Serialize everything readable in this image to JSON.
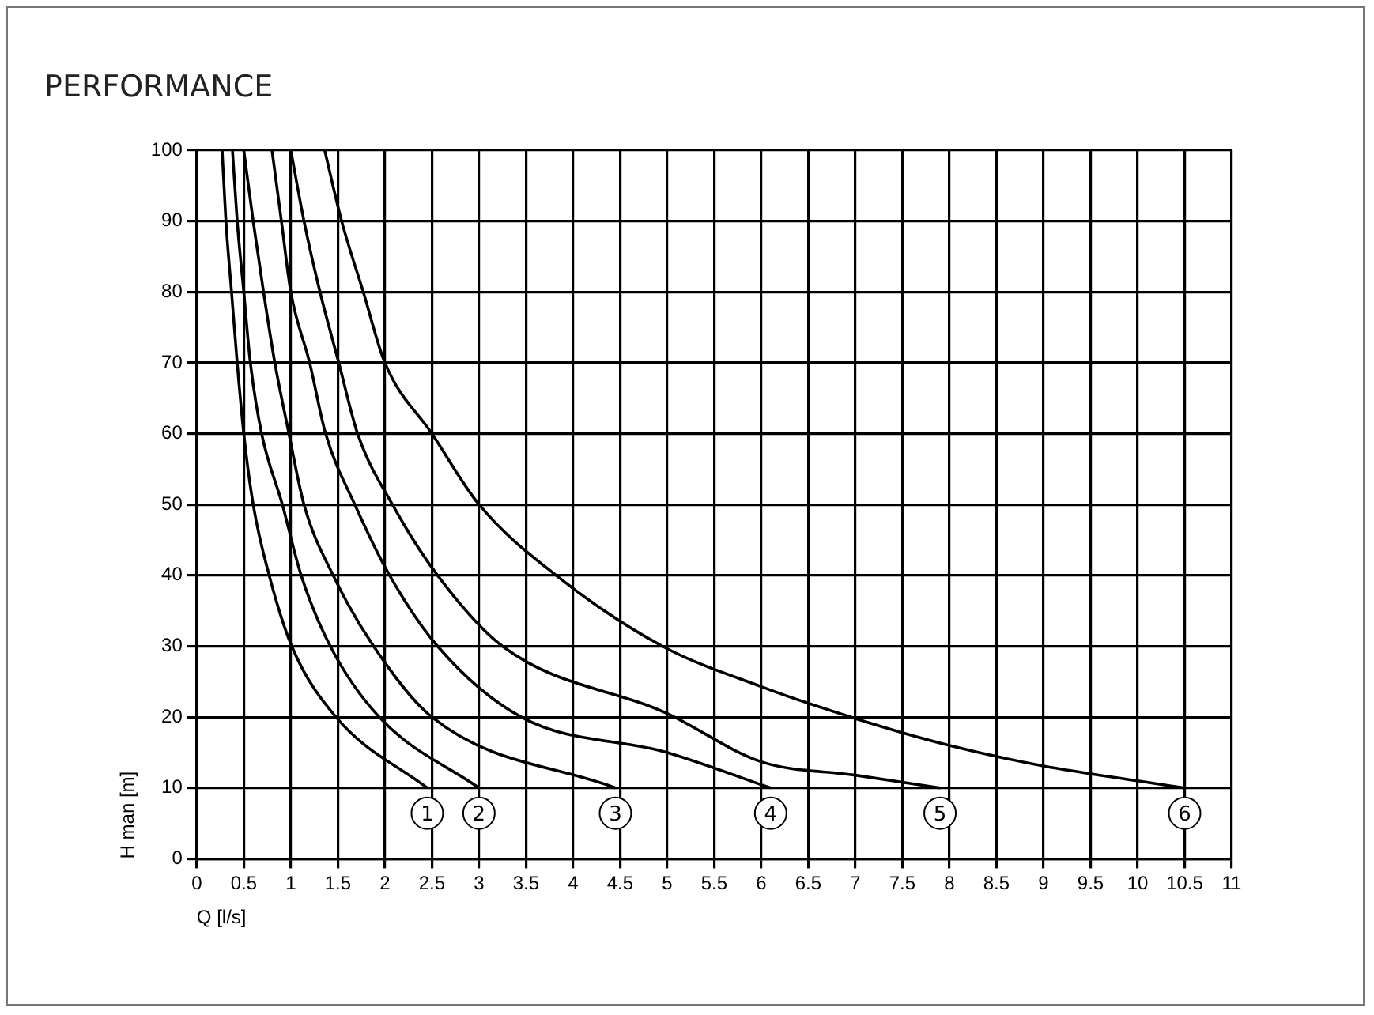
{
  "chart_data": {
    "type": "line",
    "title": "PERFORMANCE",
    "xlabel": "Q [l/s]",
    "ylabel": "H man [m]",
    "xlim": [
      0,
      11
    ],
    "xticks": [
      0,
      0.5,
      1,
      1.5,
      2,
      2.5,
      3,
      3.5,
      4,
      4.5,
      5,
      5.5,
      6,
      6.5,
      7,
      7.5,
      8,
      8.5,
      9,
      9.5,
      10,
      10.5,
      11
    ],
    "ylim": [
      0,
      100
    ],
    "yticks": [
      0,
      10,
      20,
      30,
      40,
      50,
      60,
      70,
      80,
      90,
      100
    ],
    "grid": true,
    "legend": "bottom",
    "marker": "none",
    "line_style": "solid",
    "series": [
      {
        "name": "1",
        "color": "#000000",
        "x": [
          0.27,
          0.31,
          0.37,
          0.43,
          0.5,
          0.6,
          0.77,
          1.01,
          1.48,
          2.45
        ],
        "values": [
          100,
          90,
          80,
          70,
          60,
          50,
          40,
          30,
          20,
          10
        ]
      },
      {
        "name": "2",
        "color": "#000000",
        "x": [
          0.38,
          0.43,
          0.5,
          0.57,
          0.69,
          0.91,
          1.11,
          1.42,
          1.94,
          3.0
        ],
        "values": [
          100,
          90,
          80,
          70,
          60,
          50,
          40,
          30,
          20,
          10
        ]
      },
      {
        "name": "3",
        "color": "#000000",
        "x": [
          0.5,
          0.6,
          0.71,
          0.83,
          0.98,
          1.14,
          1.45,
          1.88,
          2.5,
          4.45
        ],
        "values": [
          100,
          90,
          80,
          70,
          60,
          50,
          40,
          30,
          20,
          10
        ]
      },
      {
        "name": "4",
        "color": "#000000",
        "x": [
          0.8,
          0.9,
          1.0,
          1.2,
          1.37,
          1.68,
          2.05,
          2.56,
          3.45,
          5.0,
          6.1
        ],
        "values": [
          100,
          90,
          80,
          70,
          60,
          50,
          40,
          30,
          20,
          15,
          10
        ]
      },
      {
        "name": "5",
        "color": "#000000",
        "x": [
          1.0,
          1.14,
          1.31,
          1.51,
          1.71,
          2.08,
          2.56,
          3.25,
          5.0,
          6.0,
          7.0,
          7.9
        ],
        "values": [
          100,
          90,
          80,
          70,
          60,
          50,
          40,
          30,
          20.5,
          13.7,
          11.8,
          10
        ]
      },
      {
        "name": "6",
        "color": "#000000",
        "x": [
          1.36,
          1.54,
          1.77,
          2.0,
          2.5,
          3.0,
          3.82,
          4.95,
          6.0,
          7.0,
          8.0,
          9.0,
          10.0,
          10.5
        ],
        "values": [
          100,
          90,
          80,
          70,
          60,
          50,
          40,
          30,
          24.3,
          19.8,
          16,
          13.1,
          11,
          10
        ]
      }
    ]
  }
}
